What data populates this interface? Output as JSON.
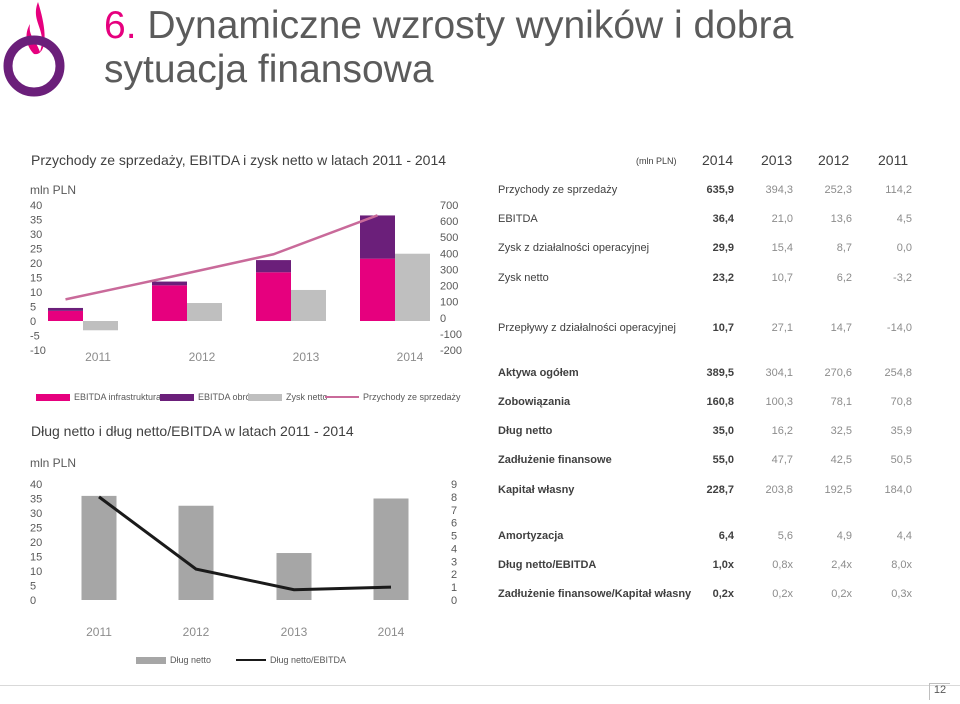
{
  "header": {
    "title_num": "6.",
    "title_text": "Dynamiczne wzrosty wyników i dobra sytuacja finansowa",
    "page_number": "12"
  },
  "section1": {
    "title": "Przychody ze sprzedaży, EBITDA i zysk netto w latach 2011 - 2014"
  },
  "section2": {
    "title": "Dług netto i dług netto/EBITDA w latach 2011 - 2014"
  },
  "table": {
    "unit": "(mln PLN)",
    "years": [
      "2014",
      "2013",
      "2012",
      "2011"
    ],
    "rows": [
      {
        "label": "Przychody ze sprzedaży",
        "values": [
          "635,9",
          "394,3",
          "252,3",
          "114,2"
        ],
        "bold": false
      },
      {
        "label": "EBITDA",
        "values": [
          "36,4",
          "21,0",
          "13,6",
          "4,5"
        ],
        "bold": false
      },
      {
        "label": "Zysk z działalności operacyjnej",
        "values": [
          "29,9",
          "15,4",
          "8,7",
          "0,0"
        ],
        "bold": false
      },
      {
        "label": "Zysk netto",
        "values": [
          "23,2",
          "10,7",
          "6,2",
          "-3,2"
        ],
        "bold": false
      },
      {
        "label": "Przepływy z działalności operacyjnej",
        "values": [
          "10,7",
          "27,1",
          "14,7",
          "-14,0"
        ],
        "bold": false
      },
      {
        "label": "Aktywa ogółem",
        "values": [
          "389,5",
          "304,1",
          "270,6",
          "254,8"
        ],
        "bold": true
      },
      {
        "label": "Zobowiązania",
        "values": [
          "160,8",
          "100,3",
          "78,1",
          "70,8"
        ],
        "bold": true
      },
      {
        "label": "Dług netto",
        "values": [
          "35,0",
          "16,2",
          "32,5",
          "35,9"
        ],
        "bold": true
      },
      {
        "label": "Zadłużenie finansowe",
        "values": [
          "55,0",
          "47,7",
          "42,5",
          "50,5"
        ],
        "bold": true
      },
      {
        "label": "Kapitał własny",
        "values": [
          "228,7",
          "203,8",
          "192,5",
          "184,0"
        ],
        "bold": true
      },
      {
        "label": "Amortyzacja",
        "values": [
          "6,4",
          "5,6",
          "4,9",
          "4,4"
        ],
        "bold": true
      },
      {
        "label": "Dług netto/EBITDA",
        "values": [
          "1,0x",
          "0,8x",
          "2,4x",
          "8,0x"
        ],
        "bold": true
      },
      {
        "label": "Zadłużenie finansowe/Kapitał własny",
        "values": [
          "0,2x",
          "0,2x",
          "0,2x",
          "0,3x"
        ],
        "bold": true
      }
    ]
  },
  "colors": {
    "accent": "#e6007e",
    "ebitda_obrot": "#6b1f7a",
    "gray_bar": "#bfbfbf",
    "line_revenue": "#c96a9a",
    "dark_line": "#1a1a1a",
    "bar_dark_gray": "#a6a6a6"
  },
  "chart_data": [
    {
      "type": "bar",
      "ylabel": "mln PLN",
      "categories": [
        "2011",
        "2012",
        "2013",
        "2014"
      ],
      "ylim": [
        -10,
        40
      ],
      "yticks": [
        "40",
        "35",
        "30",
        "25",
        "20",
        "15",
        "10",
        "5",
        "0",
        "-5",
        "-10"
      ],
      "y2lim": [
        -200,
        700
      ],
      "y2ticks": [
        "700",
        "600",
        "500",
        "400",
        "300",
        "200",
        "100",
        "0",
        "-100",
        "-200"
      ],
      "series": [
        {
          "name": "EBITDA infrastruktura",
          "type": "stacked-bar",
          "values": [
            3.5,
            12.3,
            16.8,
            21.5
          ]
        },
        {
          "name": "EBITDA obrót",
          "type": "stacked-bar",
          "values": [
            1.0,
            1.3,
            4.2,
            14.9
          ]
        },
        {
          "name": "Zysk netto",
          "type": "bar",
          "values": [
            -3.2,
            6.2,
            10.7,
            23.2
          ]
        },
        {
          "name": "Przychody ze sprzedaży",
          "type": "line",
          "axis": "secondary",
          "values": [
            114.2,
            252.3,
            394.3,
            635.9
          ]
        }
      ]
    },
    {
      "type": "bar",
      "ylabel": "mln PLN",
      "categories": [
        "2011",
        "2012",
        "2013",
        "2014"
      ],
      "ylim": [
        0,
        40
      ],
      "yticks": [
        "40",
        "35",
        "30",
        "25",
        "20",
        "15",
        "10",
        "5",
        "0"
      ],
      "y2lim": [
        0,
        9
      ],
      "y2ticks": [
        "9",
        "8",
        "7",
        "6",
        "5",
        "4",
        "3",
        "2",
        "1",
        "0"
      ],
      "series": [
        {
          "name": "Dług netto",
          "type": "bar",
          "values": [
            35.9,
            32.5,
            16.2,
            35.0
          ]
        },
        {
          "name": "Dług netto/EBITDA",
          "type": "line",
          "axis": "secondary",
          "values": [
            8.0,
            2.4,
            0.8,
            1.0
          ]
        }
      ]
    }
  ]
}
